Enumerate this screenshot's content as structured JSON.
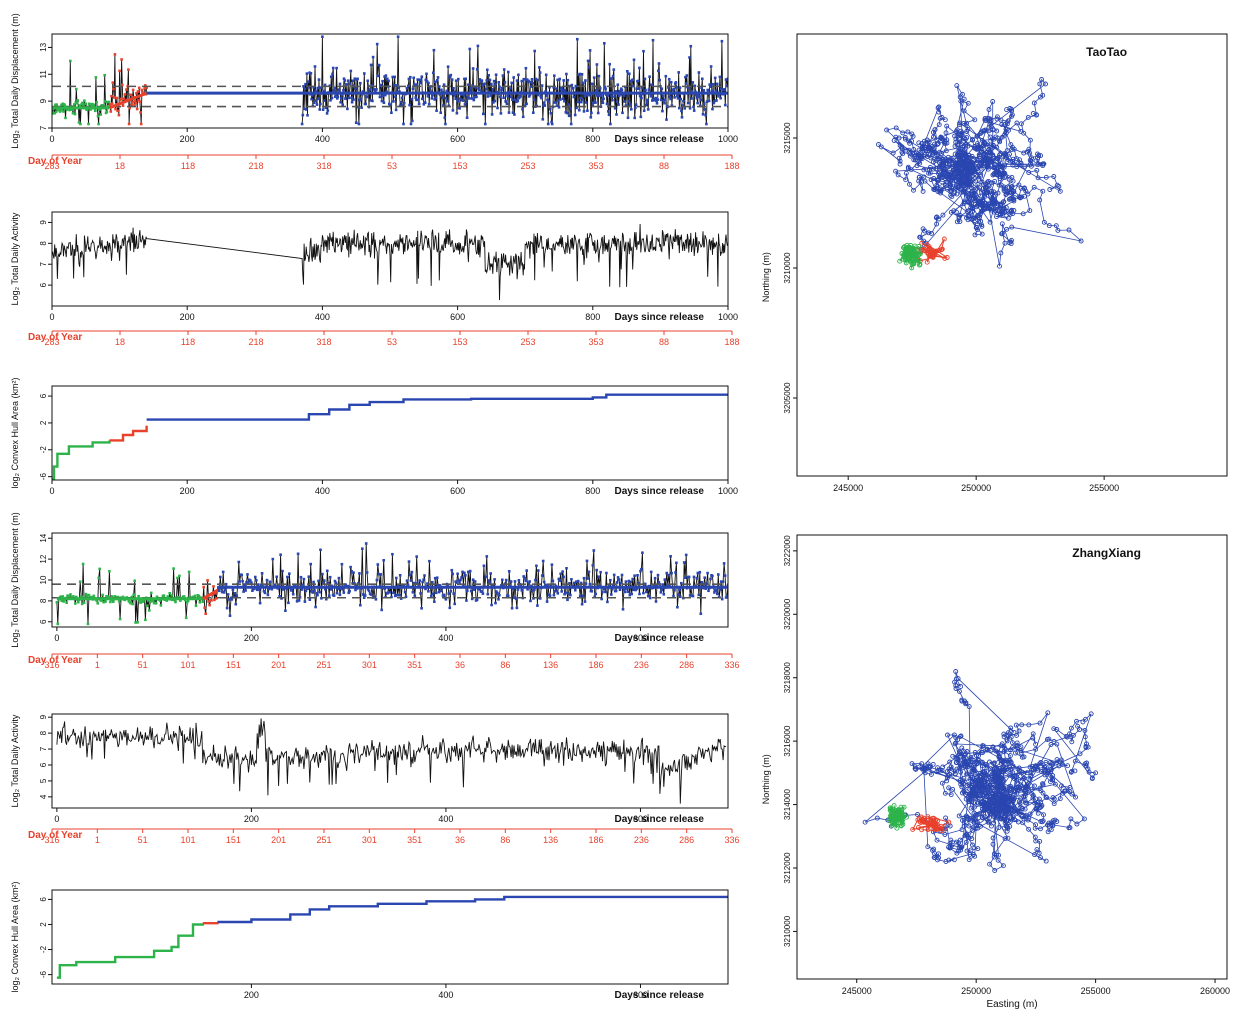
{
  "colors": {
    "pre": "#2db34a",
    "transition": "#e8412c",
    "post": "#2a46b0",
    "black": "#111111",
    "doy": "#e8412c",
    "dash": "#555555"
  },
  "labels": {
    "xlabel_days": "Days since release",
    "xlabel_doy": "Day of Year",
    "northing": "Northing (m)",
    "easting": "Easting (m)"
  },
  "panels": [
    {
      "id": "tt-displacement",
      "kind": "displacement",
      "ylabel": "Log₂ Total Daily Displacement (m)",
      "xlim": [
        0,
        1000
      ],
      "ylim": [
        7,
        14
      ],
      "xticks": [
        0,
        200,
        400,
        600,
        800,
        1000
      ],
      "yticks": [
        7,
        9,
        11,
        13
      ],
      "doy_ticks": [
        "283",
        "18",
        "118",
        "218",
        "318",
        "53",
        "153",
        "253",
        "353",
        "88",
        "188"
      ],
      "gap": [
        140,
        370
      ],
      "segments": {
        "pre": [
          0,
          85
        ],
        "trans": [
          85,
          140
        ],
        "post": [
          140,
          1000
        ]
      },
      "levels": {
        "pre": 8.5,
        "trans_end": 9.6,
        "post": 9.6
      },
      "thresholds": [
        8.6,
        10.1
      ],
      "seed": 11
    },
    {
      "id": "tt-activity",
      "kind": "activity",
      "ylabel": "Log₂ Total Daily Activity",
      "xlim": [
        0,
        1000
      ],
      "ylim": [
        5,
        9.5
      ],
      "xticks": [
        0,
        200,
        400,
        600,
        800,
        1000
      ],
      "yticks": [
        6,
        7,
        8,
        9
      ],
      "doy_ticks": [
        "283",
        "18",
        "118",
        "218",
        "318",
        "53",
        "153",
        "253",
        "353",
        "88",
        "188"
      ],
      "gap": [
        140,
        370
      ],
      "levels": {
        "mean": 7.9
      },
      "seed": 23
    },
    {
      "id": "tt-hull",
      "kind": "hull",
      "ylabel": "log₂ Convex Hull Area (km²)",
      "xlim": [
        0,
        1000
      ],
      "ylim": [
        -6.5,
        7.5
      ],
      "xticks": [
        0,
        200,
        400,
        600,
        800,
        1000
      ],
      "yticks": [
        -6,
        -2,
        2,
        6
      ],
      "ytick_labels": [
        "-6",
        "-2",
        "2",
        "6"
      ],
      "steps_pre": [
        [
          0,
          -6.3
        ],
        [
          3,
          -4.5
        ],
        [
          8,
          -2.6
        ],
        [
          25,
          -1.5
        ],
        [
          60,
          -0.9
        ],
        [
          85,
          -0.6
        ]
      ],
      "steps_trans": [
        [
          85,
          -0.6
        ],
        [
          105,
          0.2
        ],
        [
          120,
          0.8
        ],
        [
          140,
          1.6
        ]
      ],
      "steps_post": [
        [
          140,
          2.5
        ],
        [
          370,
          2.5
        ],
        [
          380,
          3.3
        ],
        [
          410,
          4.0
        ],
        [
          440,
          4.7
        ],
        [
          470,
          5.1
        ],
        [
          520,
          5.5
        ],
        [
          620,
          5.6
        ],
        [
          800,
          5.8
        ],
        [
          820,
          6.2
        ],
        [
          1000,
          6.3
        ]
      ],
      "seed": 5
    },
    {
      "id": "zx-displacement",
      "kind": "displacement",
      "ylabel": "Log₂ Total Daily Displacement (m)",
      "xlim": [
        -5,
        690
      ],
      "ylim": [
        5.5,
        14.5
      ],
      "xticks": [
        0,
        200,
        400,
        600
      ],
      "yticks": [
        6,
        8,
        10,
        12,
        14
      ],
      "doy_ticks": [
        "316",
        "1",
        "51",
        "101",
        "151",
        "201",
        "251",
        "301",
        "351",
        "36",
        "86",
        "136",
        "186",
        "236",
        "286",
        "336"
      ],
      "gap": null,
      "segments": {
        "pre": [
          0,
          150
        ],
        "trans": [
          150,
          165
        ],
        "post": [
          165,
          690
        ]
      },
      "levels": {
        "pre": 8.2,
        "trans_end": 9.0,
        "post": 9.3
      },
      "thresholds": [
        8.3,
        9.6
      ],
      "seed": 31
    },
    {
      "id": "zx-activity",
      "kind": "activity",
      "ylabel": "Log₂ Total Daily Activity",
      "xlim": [
        -5,
        690
      ],
      "ylim": [
        3.3,
        9.2
      ],
      "xticks": [
        0,
        200,
        400,
        600
      ],
      "yticks": [
        4,
        5,
        6,
        7,
        8,
        9
      ],
      "doy_ticks": [
        "316",
        "1",
        "51",
        "101",
        "151",
        "201",
        "251",
        "301",
        "351",
        "36",
        "86",
        "136",
        "186",
        "236",
        "286",
        "336"
      ],
      "gap": null,
      "levels": {
        "mean": 7.2
      },
      "seed": 47
    },
    {
      "id": "zx-hull",
      "kind": "hull",
      "ylabel": "log₂ Convex Hull Area (km²)",
      "xlim": [
        -5,
        690
      ],
      "ylim": [
        -7.5,
        7.5
      ],
      "xticks": [
        200,
        400,
        600
      ],
      "yticks": [
        -6,
        -2,
        2,
        6
      ],
      "ytick_labels": [
        "-6",
        "-2",
        "2",
        "6"
      ],
      "steps_pre": [
        [
          0,
          -6.5
        ],
        [
          3,
          -4.5
        ],
        [
          20,
          -4.0
        ],
        [
          60,
          -3.2
        ],
        [
          100,
          -2.2
        ],
        [
          118,
          -1.6
        ],
        [
          125,
          0.2
        ],
        [
          140,
          2.0
        ],
        [
          150,
          2.2
        ]
      ],
      "steps_trans": [
        [
          150,
          2.2
        ],
        [
          165,
          2.4
        ]
      ],
      "steps_post": [
        [
          165,
          2.4
        ],
        [
          200,
          2.8
        ],
        [
          240,
          3.6
        ],
        [
          260,
          4.4
        ],
        [
          280,
          4.9
        ],
        [
          330,
          5.3
        ],
        [
          380,
          5.7
        ],
        [
          430,
          6.0
        ],
        [
          460,
          6.4
        ],
        [
          690,
          6.6
        ]
      ],
      "seed": 9
    }
  ],
  "maps": [
    {
      "id": "taotao-map",
      "title": "TaoTao",
      "xlim": [
        243000,
        259800
      ],
      "ylim": [
        3202000,
        3219000
      ],
      "xticks": [
        245000,
        250000,
        255000
      ],
      "xtick_labels": [
        "245000",
        "250000",
        "255000"
      ],
      "yticks": [
        3205000,
        3210000,
        3215000
      ],
      "ytick_labels": [
        "3205000",
        "3210000",
        "3215000"
      ],
      "show_easting": false,
      "core": [
        250000,
        3213500
      ],
      "pre_center": [
        247400,
        3210500
      ],
      "trans_center": [
        248300,
        3210600
      ],
      "seed": 101
    },
    {
      "id": "zhangxiang-map",
      "title": "ZhangXiang",
      "xlim": [
        242500,
        260500
      ],
      "ylim": [
        3208500,
        3222500
      ],
      "xticks": [
        245000,
        250000,
        255000,
        260000
      ],
      "xtick_labels": [
        "245000",
        "250000",
        "255000",
        "260000"
      ],
      "yticks": [
        3210000,
        3212000,
        3214000,
        3216000,
        3218000,
        3220000,
        3222000
      ],
      "ytick_labels": [
        "3210000",
        "3212000",
        "3214000",
        "3216000",
        "3218000",
        "3220000",
        "3222000"
      ],
      "show_easting": true,
      "core": [
        250500,
        3214800
      ],
      "pre_center": [
        246700,
        3213600
      ],
      "trans_center": [
        248100,
        3213400
      ],
      "seed": 202
    }
  ],
  "chart_data": [
    {
      "type": "line",
      "xlabel": "Days since release",
      "ylabel": "Log₂ Total Daily Displacement (m)",
      "xlim": [
        0,
        1000
      ],
      "ylim": [
        7,
        14
      ],
      "series": [
        {
          "name": "",
          "x": [
            0,
            85,
            140,
            370,
            1000
          ],
          "y": [
            8.5,
            8.6,
            9.6,
            9.6,
            9.6
          ]
        }
      ],
      "grid": false
    },
    {
      "type": "line",
      "xlabel": "Days since release",
      "ylabel": "Log₂ Total Daily Activity",
      "xlim": [
        0,
        1000
      ],
      "ylim": [
        5,
        9.5
      ],
      "series": [
        {
          "name": "",
          "x": [
            0,
            140,
            370,
            1000
          ],
          "y": [
            7.9,
            8.3,
            7.6,
            8.4
          ]
        }
      ],
      "grid": false
    },
    {
      "type": "line",
      "xlabel": "Days since release",
      "ylabel": "log₂ Convex Hull Area (km²)",
      "xlim": [
        0,
        1000
      ],
      "ylim": [
        -6.5,
        7.5
      ],
      "series": [
        {
          "name": "",
          "x": [
            0,
            85,
            140,
            370,
            500,
            800,
            1000
          ],
          "y": [
            -6.3,
            -0.6,
            2.5,
            2.5,
            5.4,
            5.8,
            6.3
          ]
        }
      ],
      "grid": false
    },
    {
      "type": "line",
      "xlabel": "Days since release",
      "ylabel": "Log₂ Total Daily Displacement (m)",
      "xlim": [
        0,
        690
      ],
      "ylim": [
        5.5,
        14.5
      ],
      "series": [
        {
          "name": "",
          "x": [
            0,
            150,
            165,
            690
          ],
          "y": [
            8.2,
            8.2,
            9.0,
            9.3
          ]
        }
      ],
      "grid": false
    },
    {
      "type": "line",
      "xlabel": "Days since release",
      "ylabel": "Log₂ Total Daily Activity",
      "xlim": [
        0,
        690
      ],
      "ylim": [
        3.3,
        9.2
      ],
      "series": [
        {
          "name": "",
          "x": [
            0,
            160,
            300,
            620,
            690
          ],
          "y": [
            7.8,
            6.5,
            6.2,
            5.2,
            7.8
          ]
        }
      ],
      "grid": false
    },
    {
      "type": "line",
      "xlabel": "Days since release",
      "ylabel": "log₂ Convex Hull Area (km²)",
      "xlim": [
        0,
        690
      ],
      "ylim": [
        -7.5,
        7.5
      ],
      "series": [
        {
          "name": "",
          "x": [
            0,
            120,
            150,
            165,
            300,
            460,
            690
          ],
          "y": [
            -6.5,
            -1.6,
            2.2,
            2.4,
            5.1,
            6.4,
            6.6
          ]
        }
      ],
      "grid": false
    },
    {
      "type": "scatter",
      "title": "TaoTao",
      "xlabel": "",
      "ylabel": "Northing (m)",
      "xlim": [
        243000,
        259800
      ],
      "ylim": [
        3202000,
        3219000
      ],
      "grid": false
    },
    {
      "type": "scatter",
      "title": "ZhangXiang",
      "xlabel": "Easting (m)",
      "ylabel": "Northing (m)",
      "xlim": [
        242500,
        260500
      ],
      "ylim": [
        3208500,
        3222500
      ],
      "grid": false
    }
  ]
}
